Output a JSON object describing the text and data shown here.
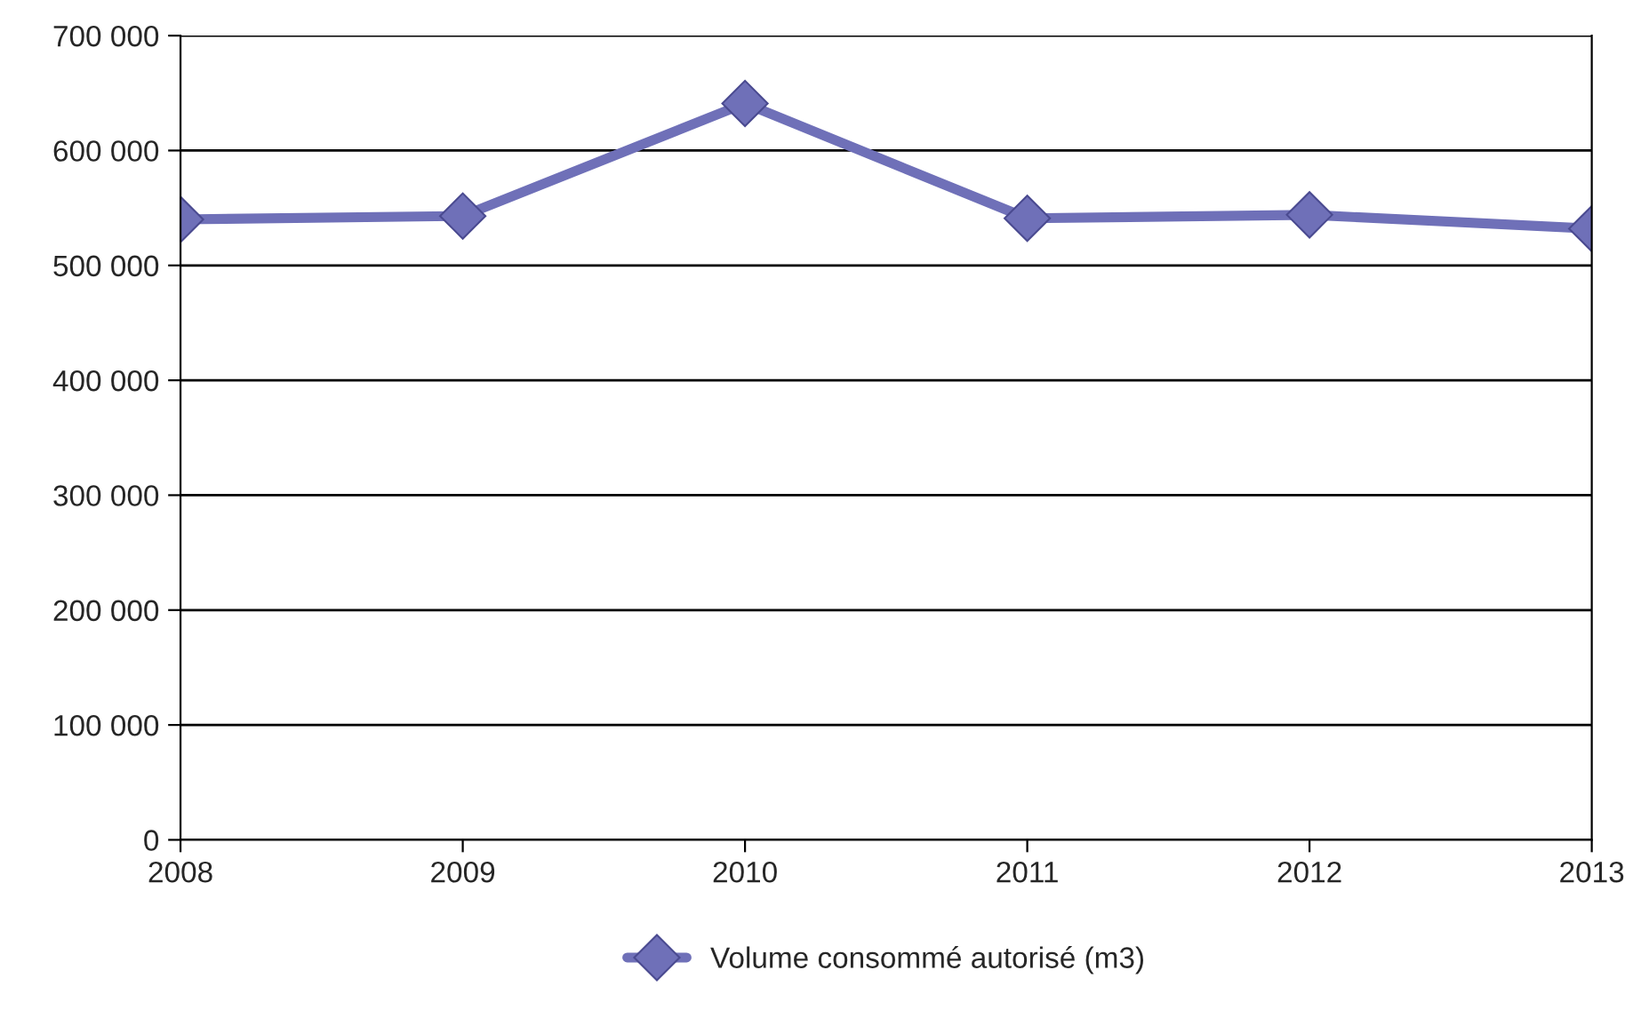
{
  "chart_data": {
    "type": "line",
    "x": [
      2008,
      2009,
      2010,
      2011,
      2012,
      2013
    ],
    "series": [
      {
        "name": "Volume consommé autorisé (m3)",
        "color": "#6f70b8",
        "values": [
          540000,
          543000,
          641000,
          541000,
          544000,
          532000
        ]
      }
    ],
    "xlim": [
      2008,
      2013
    ],
    "xticks": [
      2008,
      2009,
      2010,
      2011,
      2012,
      2013
    ],
    "ylim": [
      0,
      700000
    ],
    "yticks": [
      {
        "value": 0,
        "label": "0"
      },
      {
        "value": 100000,
        "label": "100 000"
      },
      {
        "value": 200000,
        "label": "200 000"
      },
      {
        "value": 300000,
        "label": "300 000"
      },
      {
        "value": 400000,
        "label": "400 000"
      },
      {
        "value": 500000,
        "label": "500 000"
      },
      {
        "value": 600000,
        "label": "600 000"
      },
      {
        "value": 700000,
        "label": "700 000"
      }
    ],
    "grid": "y",
    "legend": "bottom",
    "marker": "diamond",
    "line_style": "solid"
  }
}
